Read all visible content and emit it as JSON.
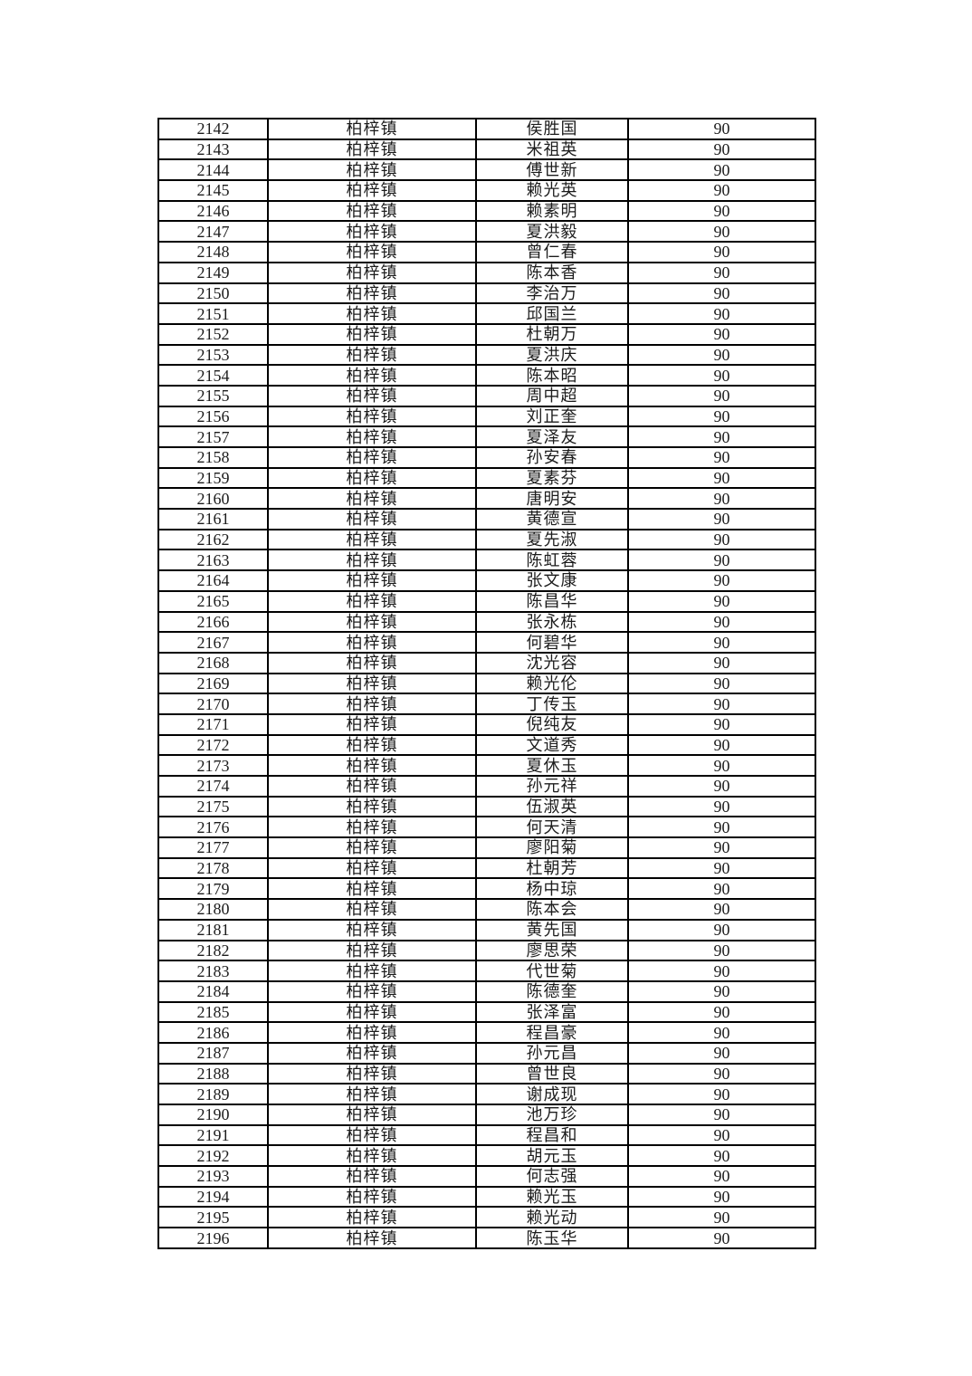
{
  "document": {
    "type": "score-list-table-page",
    "text_color": "#1c1c1c",
    "border_color": "#000000",
    "background_color": "#ffffff"
  },
  "table": {
    "columns": [
      "serial-number",
      "town",
      "person-name",
      "score"
    ],
    "rows": [
      [
        "2142",
        "柏梓镇",
        "侯胜国",
        "90"
      ],
      [
        "2143",
        "柏梓镇",
        "米祖英",
        "90"
      ],
      [
        "2144",
        "柏梓镇",
        "傅世新",
        "90"
      ],
      [
        "2145",
        "柏梓镇",
        "赖光英",
        "90"
      ],
      [
        "2146",
        "柏梓镇",
        "赖素明",
        "90"
      ],
      [
        "2147",
        "柏梓镇",
        "夏洪毅",
        "90"
      ],
      [
        "2148",
        "柏梓镇",
        "曾仁春",
        "90"
      ],
      [
        "2149",
        "柏梓镇",
        "陈本香",
        "90"
      ],
      [
        "2150",
        "柏梓镇",
        "李治万",
        "90"
      ],
      [
        "2151",
        "柏梓镇",
        "邱国兰",
        "90"
      ],
      [
        "2152",
        "柏梓镇",
        "杜朝万",
        "90"
      ],
      [
        "2153",
        "柏梓镇",
        "夏洪庆",
        "90"
      ],
      [
        "2154",
        "柏梓镇",
        "陈本昭",
        "90"
      ],
      [
        "2155",
        "柏梓镇",
        "周中超",
        "90"
      ],
      [
        "2156",
        "柏梓镇",
        "刘正奎",
        "90"
      ],
      [
        "2157",
        "柏梓镇",
        "夏泽友",
        "90"
      ],
      [
        "2158",
        "柏梓镇",
        "孙安春",
        "90"
      ],
      [
        "2159",
        "柏梓镇",
        "夏素芬",
        "90"
      ],
      [
        "2160",
        "柏梓镇",
        "唐明安",
        "90"
      ],
      [
        "2161",
        "柏梓镇",
        "黄德宣",
        "90"
      ],
      [
        "2162",
        "柏梓镇",
        "夏先淑",
        "90"
      ],
      [
        "2163",
        "柏梓镇",
        "陈虹蓉",
        "90"
      ],
      [
        "2164",
        "柏梓镇",
        "张文康",
        "90"
      ],
      [
        "2165",
        "柏梓镇",
        "陈昌华",
        "90"
      ],
      [
        "2166",
        "柏梓镇",
        "张永栋",
        "90"
      ],
      [
        "2167",
        "柏梓镇",
        "何碧华",
        "90"
      ],
      [
        "2168",
        "柏梓镇",
        "沈光容",
        "90"
      ],
      [
        "2169",
        "柏梓镇",
        "赖光伦",
        "90"
      ],
      [
        "2170",
        "柏梓镇",
        "丁传玉",
        "90"
      ],
      [
        "2171",
        "柏梓镇",
        "倪纯友",
        "90"
      ],
      [
        "2172",
        "柏梓镇",
        "文道秀",
        "90"
      ],
      [
        "2173",
        "柏梓镇",
        "夏休玉",
        "90"
      ],
      [
        "2174",
        "柏梓镇",
        "孙元祥",
        "90"
      ],
      [
        "2175",
        "柏梓镇",
        "伍淑英",
        "90"
      ],
      [
        "2176",
        "柏梓镇",
        "何天清",
        "90"
      ],
      [
        "2177",
        "柏梓镇",
        "廖阳菊",
        "90"
      ],
      [
        "2178",
        "柏梓镇",
        "杜朝芳",
        "90"
      ],
      [
        "2179",
        "柏梓镇",
        "杨中琼",
        "90"
      ],
      [
        "2180",
        "柏梓镇",
        "陈本会",
        "90"
      ],
      [
        "2181",
        "柏梓镇",
        "黄先国",
        "90"
      ],
      [
        "2182",
        "柏梓镇",
        "廖思荣",
        "90"
      ],
      [
        "2183",
        "柏梓镇",
        "代世菊",
        "90"
      ],
      [
        "2184",
        "柏梓镇",
        "陈德奎",
        "90"
      ],
      [
        "2185",
        "柏梓镇",
        "张泽富",
        "90"
      ],
      [
        "2186",
        "柏梓镇",
        "程昌豪",
        "90"
      ],
      [
        "2187",
        "柏梓镇",
        "孙元昌",
        "90"
      ],
      [
        "2188",
        "柏梓镇",
        "曾世良",
        "90"
      ],
      [
        "2189",
        "柏梓镇",
        "谢成现",
        "90"
      ],
      [
        "2190",
        "柏梓镇",
        "池万珍",
        "90"
      ],
      [
        "2191",
        "柏梓镇",
        "程昌和",
        "90"
      ],
      [
        "2192",
        "柏梓镇",
        "胡元玉",
        "90"
      ],
      [
        "2193",
        "柏梓镇",
        "何志强",
        "90"
      ],
      [
        "2194",
        "柏梓镇",
        "赖光玉",
        "90"
      ],
      [
        "2195",
        "柏梓镇",
        "赖光动",
        "90"
      ],
      [
        "2196",
        "柏梓镇",
        "陈玉华",
        "90"
      ]
    ]
  }
}
